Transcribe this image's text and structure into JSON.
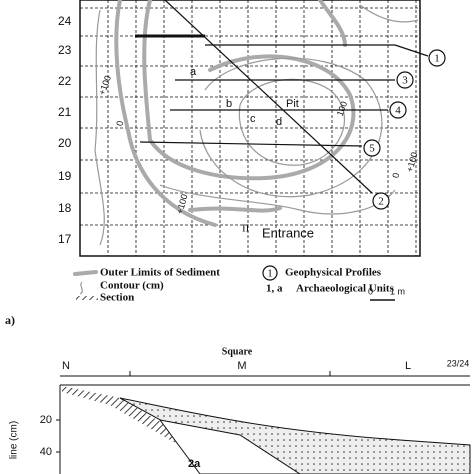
{
  "map": {
    "row_labels": [
      "24",
      "23",
      "22",
      "21",
      "20",
      "19",
      "18",
      "17"
    ],
    "profiles": [
      "1",
      "3",
      "4",
      "5",
      "2"
    ],
    "units": [
      "a",
      "b",
      "c",
      "d"
    ],
    "features": [
      "Pit",
      "II",
      "Entrance"
    ],
    "contour_labels": [
      "+100",
      "0",
      "100",
      "0",
      "+100",
      "+100"
    ],
    "legend": {
      "sediment": "Outer Limits of Sediment",
      "contour": "Contour (cm)",
      "section": "Section",
      "profile_symbol": "1",
      "profiles": "Geophysical Profiles",
      "units_symbol": "1, a",
      "units": "Archaeological Units",
      "scale_start": "0",
      "scale_end": "1 m"
    },
    "panel_label": "a)"
  },
  "section": {
    "title": "Square",
    "squares": [
      "N",
      "M",
      "L"
    ],
    "boundary": "23/24",
    "axis_label": "line (cm)",
    "depth_labels": [
      "20",
      "40"
    ],
    "unit_label": "2a"
  }
}
